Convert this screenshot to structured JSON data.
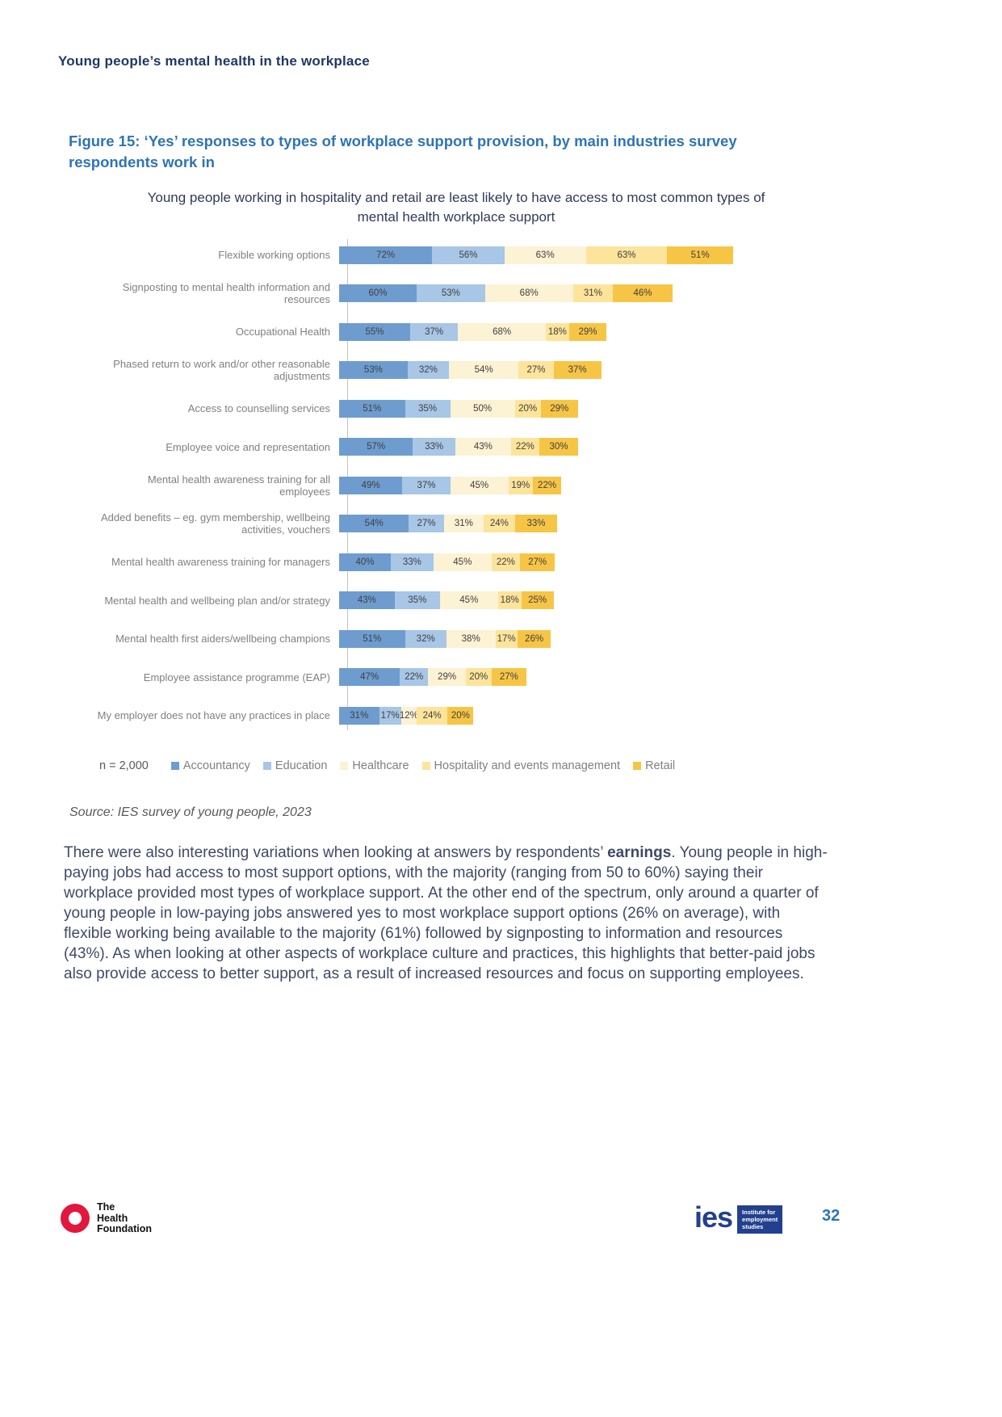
{
  "page": {
    "header": "Young people’s mental health in the workplace",
    "page_number": "32"
  },
  "figure": {
    "title": "Figure 15: ‘Yes’ responses to types of workplace support provision, by main industries survey respondents work in",
    "n_label": "n = 2,000",
    "source": "Source: IES survey of young people, 2023"
  },
  "chart_data": {
    "type": "bar",
    "orientation": "horizontal-stacked",
    "unit": "%",
    "title": "Young people working in hospitality and retail are least likely to have access to most common types of mental health workplace support",
    "legend_position": "bottom",
    "categories": [
      "Flexible working options",
      "Signposting to mental health information and resources",
      "Occupational Health",
      "Phased return to work and/or other reasonable adjustments",
      "Access to counselling services",
      "Employee voice and representation",
      "Mental health awareness training for all employees",
      "Added benefits – eg. gym membership, wellbeing activities, vouchers",
      "Mental health awareness training for managers",
      "Mental health and wellbeing plan and/or strategy",
      "Mental health first aiders/wellbeing champions",
      "Employee assistance programme (EAP)",
      "My employer does not have any practices in place"
    ],
    "series": [
      {
        "name": "Accountancy",
        "color": "#6e9ccf",
        "values": [
          72,
          60,
          55,
          53,
          51,
          57,
          49,
          54,
          40,
          43,
          51,
          47,
          31
        ]
      },
      {
        "name": "Education",
        "color": "#a8c6e6",
        "values": [
          56,
          53,
          37,
          32,
          35,
          33,
          37,
          27,
          33,
          35,
          32,
          22,
          17
        ]
      },
      {
        "name": "Healthcare",
        "color": "#fcf2d4",
        "values": [
          63,
          68,
          68,
          54,
          50,
          43,
          45,
          31,
          45,
          45,
          38,
          29,
          12
        ]
      },
      {
        "name": "Hospitality and events management",
        "color": "#fde49b",
        "values": [
          63,
          31,
          18,
          27,
          20,
          22,
          19,
          24,
          22,
          18,
          17,
          20,
          24
        ]
      },
      {
        "name": "Retail",
        "color": "#f7c546",
        "values": [
          51,
          46,
          29,
          37,
          29,
          30,
          22,
          33,
          27,
          25,
          26,
          27,
          20
        ]
      }
    ]
  },
  "body": {
    "before_bold": "There were also interesting variations when looking at answers by respondents’ ",
    "bold_word": "earnings",
    "after_bold": ". Young people in high-paying jobs had access to most support options, with the majority (ranging from 50 to 60%) saying their workplace provided most types of workplace support. At the other end of the spectrum, only around a quarter of young people in low-paying jobs answered yes to most workplace support options (26% on average), with flexible working being available to the majority (61%) followed by signposting to information and resources (43%). As when looking at other aspects of workplace culture and practices, this highlights that better-paid jobs also provide access to better support, as a result of increased resources and focus on supporting employees."
  },
  "footer": {
    "hf_line1": "The",
    "hf_line2": "Health",
    "hf_line3": "Foundation",
    "ies_word": "ies",
    "ies_box_line1": "Institute for",
    "ies_box_line2": "employment",
    "ies_box_line3": "studies"
  }
}
